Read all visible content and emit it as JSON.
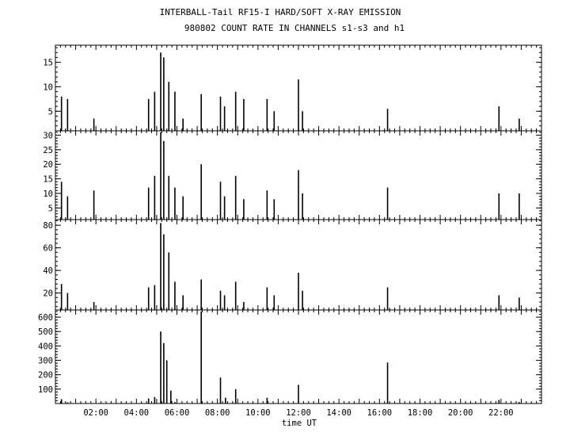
{
  "title_line1": "INTERBALL-Tail RF15-I HARD/SOFT X-RAY EMISSION",
  "title_line2": "980802  COUNT RATE IN CHANNELS s1-s3 and h1",
  "chart_data": {
    "type": "line",
    "title": "INTERBALL-Tail RF15-I HARD/SOFT X-RAY EMISSION",
    "subtitle": "980802  COUNT RATE IN CHANNELS s1-s3 and h1",
    "xlabel": "time UT",
    "x_unit": "hours UT",
    "xlim": [
      0,
      24
    ],
    "x_tick_labels": [
      "02:00",
      "04:00",
      "06:00",
      "08:00",
      "10:00",
      "12:00",
      "14:00",
      "16:00",
      "18:00",
      "20:00",
      "22:00"
    ],
    "x_tick_values": [
      2,
      4,
      6,
      8,
      10,
      12,
      14,
      16,
      18,
      20,
      22
    ],
    "grid": false,
    "panels": [
      {
        "ylim": [
          1,
          18.5
        ],
        "y_ticks": [
          5,
          10,
          15
        ],
        "y_tick_labels": [
          "5",
          "10",
          "15"
        ],
        "points": [
          [
            0.3,
            8
          ],
          [
            0.6,
            7.5
          ],
          [
            1.9,
            3.5
          ],
          [
            4.6,
            7.5
          ],
          [
            4.9,
            9
          ],
          [
            5.2,
            17
          ],
          [
            5.35,
            16
          ],
          [
            5.6,
            11
          ],
          [
            5.9,
            9
          ],
          [
            6.3,
            3.5
          ],
          [
            7.2,
            8.5
          ],
          [
            8.15,
            8
          ],
          [
            8.35,
            6
          ],
          [
            8.9,
            9
          ],
          [
            9.3,
            7.5
          ],
          [
            10.45,
            7.5
          ],
          [
            10.8,
            5
          ],
          [
            12.0,
            11.5
          ],
          [
            12.2,
            5
          ],
          [
            16.4,
            5.5
          ],
          [
            21.9,
            6
          ],
          [
            22.9,
            3.5
          ]
        ]
      },
      {
        "ylim": [
          1,
          31.5
        ],
        "y_ticks": [
          5,
          10,
          15,
          20,
          25,
          30
        ],
        "y_tick_labels": [
          "5",
          "10",
          "15",
          "20",
          "25",
          "30"
        ],
        "points": [
          [
            0.3,
            14
          ],
          [
            0.6,
            9
          ],
          [
            1.9,
            11
          ],
          [
            4.6,
            12
          ],
          [
            4.9,
            16
          ],
          [
            5.2,
            31
          ],
          [
            5.35,
            28
          ],
          [
            5.6,
            16
          ],
          [
            5.9,
            12
          ],
          [
            6.3,
            9
          ],
          [
            7.2,
            20
          ],
          [
            8.15,
            14
          ],
          [
            8.35,
            9
          ],
          [
            8.9,
            16
          ],
          [
            9.3,
            8
          ],
          [
            10.45,
            11
          ],
          [
            10.8,
            8
          ],
          [
            12.0,
            18
          ],
          [
            12.2,
            10
          ],
          [
            16.4,
            12
          ],
          [
            21.9,
            10
          ],
          [
            22.9,
            10
          ]
        ]
      },
      {
        "ylim": [
          5,
          85
        ],
        "y_ticks": [
          20,
          40,
          60,
          80
        ],
        "y_tick_labels": [
          "20",
          "40",
          "60",
          "80"
        ],
        "points": [
          [
            0.3,
            28
          ],
          [
            0.6,
            20
          ],
          [
            1.9,
            12
          ],
          [
            4.6,
            25
          ],
          [
            4.9,
            27
          ],
          [
            5.2,
            82
          ],
          [
            5.35,
            72
          ],
          [
            5.6,
            56
          ],
          [
            5.9,
            30
          ],
          [
            6.3,
            18
          ],
          [
            7.2,
            32
          ],
          [
            8.15,
            22
          ],
          [
            8.35,
            18
          ],
          [
            8.9,
            30
          ],
          [
            9.3,
            12
          ],
          [
            10.45,
            25
          ],
          [
            10.8,
            18
          ],
          [
            12.0,
            38
          ],
          [
            12.2,
            22
          ],
          [
            16.4,
            25
          ],
          [
            21.9,
            18
          ],
          [
            22.9,
            16
          ]
        ]
      },
      {
        "ylim": [
          0,
          650
        ],
        "y_ticks": [
          100,
          200,
          300,
          400,
          500,
          600
        ],
        "y_tick_labels": [
          "100",
          "200",
          "300",
          "400",
          "500",
          "600"
        ],
        "points": [
          [
            0.3,
            30
          ],
          [
            0.6,
            8
          ],
          [
            4.6,
            35
          ],
          [
            4.9,
            45
          ],
          [
            5.2,
            500
          ],
          [
            5.35,
            420
          ],
          [
            5.5,
            300
          ],
          [
            5.7,
            90
          ],
          [
            5.9,
            10
          ],
          [
            7.2,
            640
          ],
          [
            8.15,
            180
          ],
          [
            8.4,
            40
          ],
          [
            8.9,
            100
          ],
          [
            10.45,
            40
          ],
          [
            12.0,
            130
          ],
          [
            16.4,
            285
          ],
          [
            21.9,
            25
          ],
          [
            22.9,
            10
          ]
        ]
      }
    ]
  }
}
